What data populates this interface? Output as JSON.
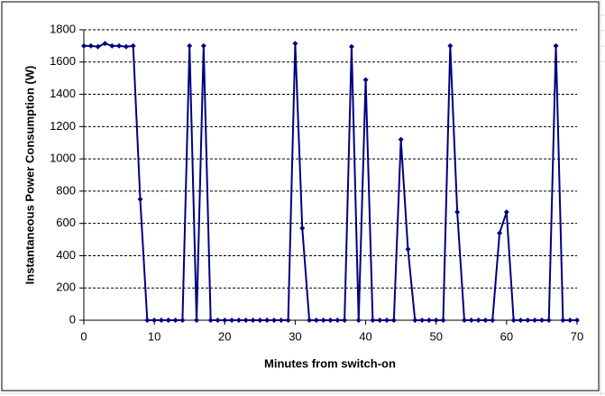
{
  "chart_data": {
    "type": "line",
    "x_label": "Minutes from switch-on",
    "y_label": "Instantaneous Power Consumption (W)",
    "x": [
      0,
      1,
      2,
      3,
      4,
      5,
      6,
      7,
      8,
      9,
      10,
      11,
      12,
      13,
      14,
      15,
      16,
      17,
      18,
      19,
      20,
      21,
      22,
      23,
      24,
      25,
      26,
      27,
      28,
      29,
      30,
      31,
      32,
      33,
      34,
      35,
      36,
      37,
      38,
      39,
      40,
      41,
      42,
      43,
      44,
      45,
      46,
      47,
      48,
      49,
      50,
      51,
      52,
      53,
      54,
      55,
      56,
      57,
      58,
      59,
      60,
      61,
      62,
      63,
      64,
      65,
      66,
      67,
      68,
      69,
      70
    ],
    "values": [
      1700,
      1700,
      1695,
      1715,
      1700,
      1700,
      1695,
      1700,
      750,
      0,
      0,
      0,
      0,
      0,
      0,
      1700,
      0,
      1700,
      0,
      0,
      0,
      0,
      0,
      0,
      0,
      0,
      0,
      0,
      0,
      0,
      1715,
      570,
      0,
      0,
      0,
      0,
      0,
      0,
      1695,
      0,
      1490,
      0,
      0,
      0,
      0,
      1120,
      440,
      0,
      0,
      0,
      0,
      0,
      1700,
      670,
      0,
      0,
      0,
      0,
      0,
      540,
      670,
      0,
      0,
      0,
      0,
      0,
      0,
      1700,
      0,
      0,
      0
    ],
    "color": "#000080",
    "xlim": [
      0,
      70
    ],
    "xticks": [
      0,
      10,
      20,
      30,
      40,
      50,
      60,
      70
    ],
    "ylim": [
      0,
      1800
    ],
    "yticks": [
      0,
      200,
      400,
      600,
      800,
      1000,
      1200,
      1400,
      1600,
      1800
    ],
    "grid": true
  }
}
